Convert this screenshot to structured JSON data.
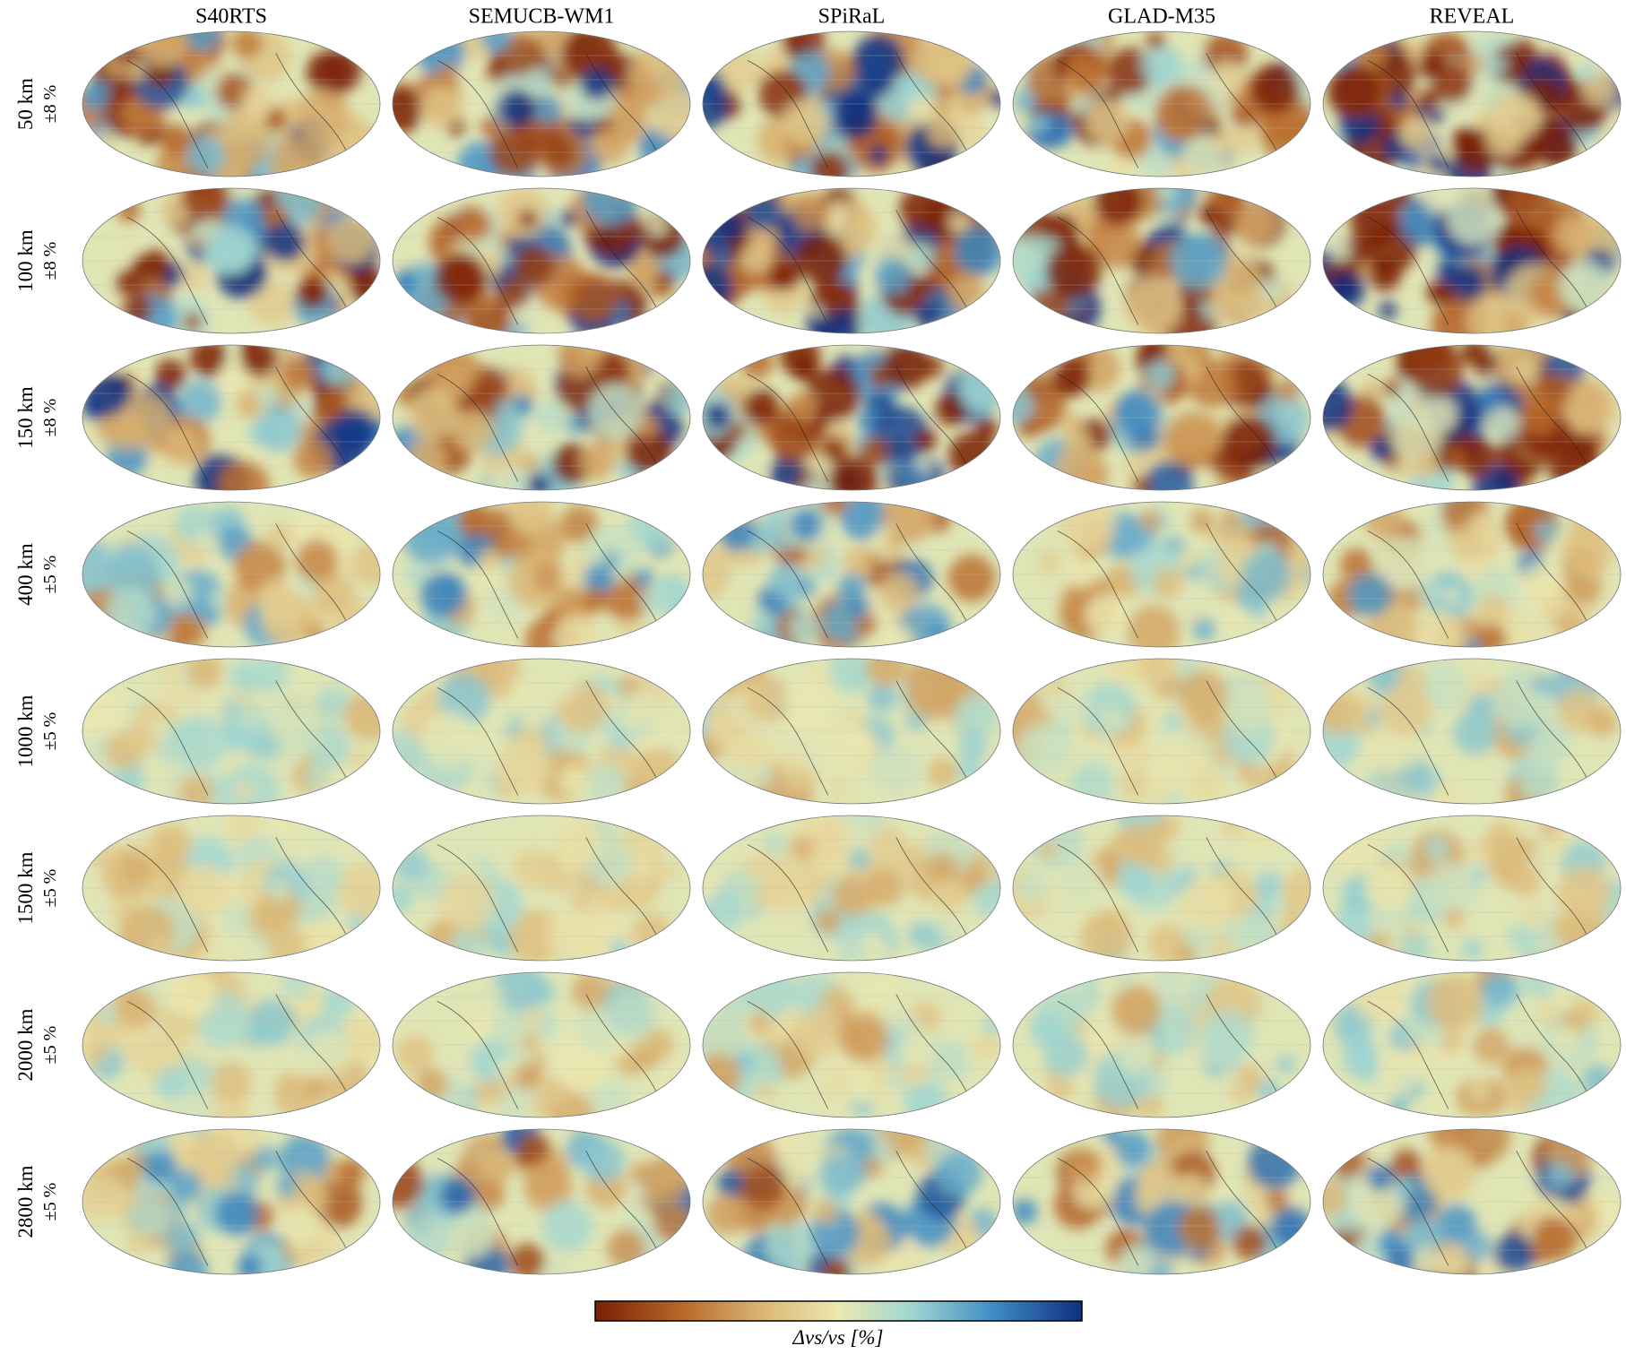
{
  "figure": {
    "columns": [
      "S40RTS",
      "SEMUCB-WM1",
      "SPiRaL",
      "GLAD-M35",
      "REVEAL"
    ],
    "rows": [
      {
        "depth": "50 km",
        "range": "±8 %"
      },
      {
        "depth": "100 km",
        "range": "±8 %"
      },
      {
        "depth": "150 km",
        "range": "±8 %"
      },
      {
        "depth": "400 km",
        "range": "±5 %"
      },
      {
        "depth": "1000 km",
        "range": "±5 %"
      },
      {
        "depth": "1500 km",
        "range": "±5 %"
      },
      {
        "depth": "2000 km",
        "range": "±5 %"
      },
      {
        "depth": "2800 km",
        "range": "±5 %"
      }
    ],
    "colorbar_label": "Δvs/vs [%]"
  }
}
